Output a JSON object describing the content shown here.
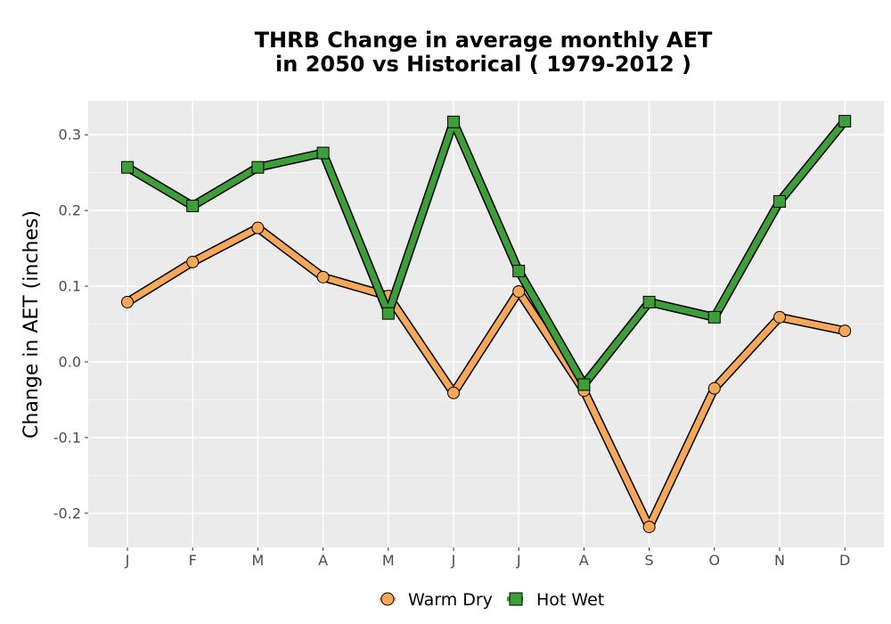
{
  "chart_data": {
    "type": "line",
    "title_lines": [
      "THRB  Change in average monthly AET",
      "in 2050 vs Historical ( 1979-2012 )"
    ],
    "xlabel": "",
    "ylabel": "Change in AET (inches)",
    "categories": [
      "J",
      "F",
      "M",
      "A",
      "M",
      "J",
      "J",
      "A",
      "S",
      "O",
      "N",
      "D"
    ],
    "ylim": [
      -0.245,
      0.345
    ],
    "yticks": [
      -0.2,
      -0.1,
      0.0,
      0.1,
      0.2,
      0.3
    ],
    "ytick_labels": [
      "-0.2",
      "-0.1",
      "0.0",
      "0.1",
      "0.2",
      "0.3"
    ],
    "grid": true,
    "legend_position": "bottom",
    "series": [
      {
        "name": "Warm Dry",
        "marker": "circle",
        "color": "#f5a75a",
        "values": [
          0.079,
          0.132,
          0.177,
          0.112,
          0.087,
          -0.041,
          0.093,
          -0.038,
          -0.218,
          -0.035,
          0.059,
          0.041
        ]
      },
      {
        "name": "Hot Wet",
        "marker": "square",
        "color": "#3e9e39",
        "values": [
          0.257,
          0.206,
          0.257,
          0.276,
          0.064,
          0.317,
          0.12,
          -0.03,
          0.079,
          0.059,
          0.212,
          0.318
        ]
      }
    ]
  }
}
